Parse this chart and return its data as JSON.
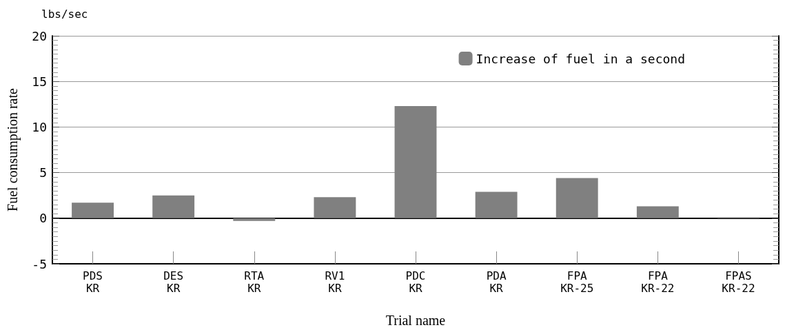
{
  "chart_data": {
    "type": "bar",
    "categories": [
      "PDS\nKR",
      "DES\nKR",
      "RTA\nKR",
      "RV1\nKR",
      "PDC\nKR",
      "PDA\nKR",
      "FPA\nKR-25",
      "FPA\nKR-22",
      "FPAS\nKR-22"
    ],
    "series": [
      {
        "name": "Increase of fuel in a second",
        "color": "#808080",
        "values": [
          1.7,
          2.5,
          -0.3,
          2.3,
          12.3,
          2.9,
          4.4,
          1.3,
          0.1
        ]
      }
    ],
    "xlabel": "Trial name",
    "ylabel": "Fuel consumption rate",
    "annotations": [
      "lbs/sec"
    ],
    "ylim": [
      -5,
      20
    ],
    "yticks": [
      -5,
      0,
      5,
      10,
      15,
      20
    ],
    "grid": "y",
    "legend": "top right"
  }
}
